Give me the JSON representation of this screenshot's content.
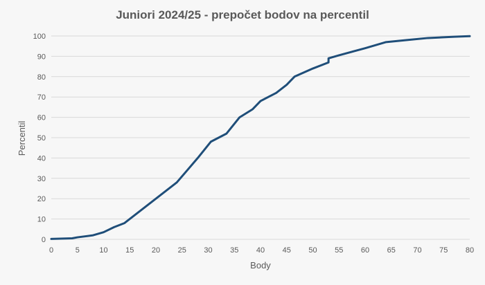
{
  "chart_data": {
    "type": "line",
    "title": "Juniori 2024/25 - prepočet bodov na percentil",
    "xlabel": "Body",
    "ylabel": "Percentil",
    "xlim": [
      0,
      80
    ],
    "ylim": [
      0,
      100
    ],
    "xticks": [
      0,
      5,
      10,
      15,
      20,
      25,
      30,
      35,
      40,
      45,
      50,
      55,
      60,
      65,
      70,
      75,
      80
    ],
    "yticks": [
      0,
      10,
      20,
      30,
      40,
      50,
      60,
      70,
      80,
      90,
      100
    ],
    "grid": "horizontal",
    "legend": "none",
    "line_color": "#1f4e79",
    "series": [
      {
        "x": [
          0,
          4,
          5,
          8,
          10,
          12,
          14,
          16,
          18,
          20,
          22,
          24,
          26,
          28,
          30.5,
          33.5,
          36,
          38.5,
          40,
          43,
          45,
          46.5,
          50,
          53,
          53,
          55,
          60,
          64,
          68,
          72,
          77,
          80
        ],
        "y": [
          0.2,
          0.5,
          1,
          2,
          3.5,
          6,
          8,
          12,
          16,
          20,
          24,
          28,
          34,
          40,
          48,
          52,
          60,
          64,
          68,
          72,
          76,
          80,
          84,
          87,
          89,
          90.5,
          94,
          97,
          98,
          99,
          99.6,
          99.9
        ]
      }
    ]
  }
}
